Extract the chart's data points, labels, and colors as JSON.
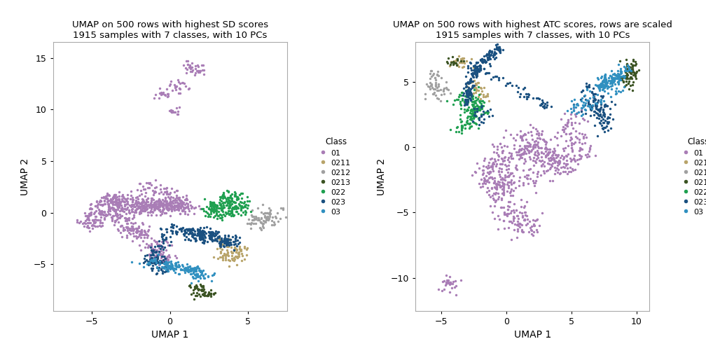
{
  "plot1": {
    "title": "UMAP on 500 rows with highest SD scores\n1915 samples with 7 classes, with 10 PCs",
    "xlabel": "UMAP 1",
    "ylabel": "UMAP 2",
    "xlim": [
      -7.5,
      7.5
    ],
    "ylim": [
      -9.5,
      16.5
    ],
    "xticks": [
      -5,
      0,
      5
    ],
    "yticks": [
      -5,
      0,
      5,
      10,
      15
    ]
  },
  "plot2": {
    "title": "UMAP on 500 rows with highest ATC scores, rows are scaled\n1915 samples with 7 classes, with 10 PCs",
    "xlabel": "UMAP 1",
    "ylabel": "UMAP 2",
    "xlim": [
      -7.0,
      11.0
    ],
    "ylim": [
      -12.5,
      8.0
    ],
    "xticks": [
      -5,
      0,
      5,
      10
    ],
    "yticks": [
      -10,
      -5,
      0,
      5
    ]
  },
  "classes": [
    "01",
    "0211",
    "0212",
    "0213",
    "022",
    "023",
    "03"
  ],
  "colors": {
    "01": "#A97DB6",
    "0211": "#B8A46A",
    "0212": "#A0A0A0",
    "0213": "#3B5323",
    "022": "#1FA050",
    "023": "#1A5080",
    "03": "#3090C0"
  },
  "point_size": 6,
  "alpha": 1.0,
  "bg_color": "#FFFFFF",
  "spine_color": "#AAAAAA"
}
